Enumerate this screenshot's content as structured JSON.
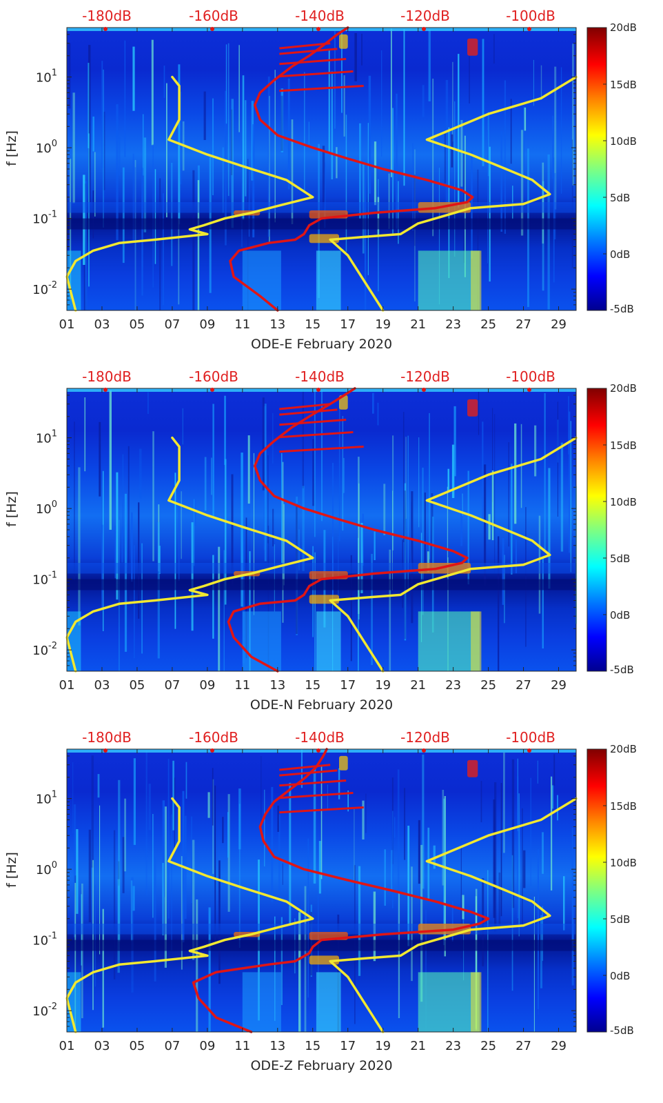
{
  "chart_data": [
    {
      "type": "heatmap",
      "title": "",
      "xlabel": "ODE-E February 2020",
      "ylabel": "f [Hz]",
      "x_ticks": [
        "01",
        "03",
        "05",
        "07",
        "09",
        "11",
        "13",
        "15",
        "17",
        "19",
        "21",
        "23",
        "25",
        "27",
        "29"
      ],
      "xlim": [
        1,
        30
      ],
      "ylim": [
        0.005,
        50
      ],
      "y_scale": "log",
      "y_ticks": [
        {
          "value": 0.01,
          "base": "10",
          "exp": "-2"
        },
        {
          "value": 0.1,
          "base": "10",
          "exp": "-1"
        },
        {
          "value": 1,
          "base": "10",
          "exp": "0"
        },
        {
          "value": 10,
          "base": "10",
          "exp": "1"
        }
      ],
      "top_labels": [
        "-180dB",
        "-160dB",
        "-140dB",
        "-120dB",
        "-100dB"
      ],
      "colorbar": {
        "ticks": [
          "20dB",
          "15dB",
          "10dB",
          "5dB",
          "0dB",
          "-5dB"
        ],
        "range": [
          -5,
          20
        ]
      },
      "series": [
        {
          "color": "#f2e830",
          "points": [
            [
              7.0,
              10
            ],
            [
              7.4,
              7.5
            ],
            [
              7.4,
              2.5
            ],
            [
              6.8,
              1.3
            ],
            [
              9,
              0.8
            ],
            [
              11,
              0.55
            ],
            [
              13.5,
              0.35
            ],
            [
              15,
              0.2
            ],
            [
              13,
              0.15
            ],
            [
              11.5,
              0.12
            ],
            [
              10,
              0.1
            ],
            [
              8.8,
              0.08
            ],
            [
              8,
              0.07
            ],
            [
              9,
              0.06
            ],
            [
              6,
              0.05
            ],
            [
              4,
              0.045
            ],
            [
              2.5,
              0.035
            ],
            [
              1.5,
              0.025
            ],
            [
              1.0,
              0.015
            ],
            [
              1.5,
              0.005
            ]
          ]
        },
        {
          "color": "#f2e830",
          "points": [
            [
              30,
              10
            ],
            [
              28,
              5
            ],
            [
              25,
              3
            ],
            [
              21.5,
              1.3
            ],
            [
              24,
              0.8
            ],
            [
              26,
              0.5
            ],
            [
              27.5,
              0.35
            ],
            [
              28.5,
              0.22
            ],
            [
              27,
              0.16
            ],
            [
              24,
              0.14
            ],
            [
              22,
              0.1
            ],
            [
              21,
              0.085
            ],
            [
              20,
              0.06
            ],
            [
              18,
              0.055
            ],
            [
              16,
              0.05
            ],
            [
              17,
              0.03
            ],
            [
              19,
              0.005
            ]
          ]
        },
        {
          "color": "#e01515",
          "points": [
            [
              13,
              0.005
            ],
            [
              12,
              0.008
            ],
            [
              10.5,
              0.015
            ],
            [
              10.3,
              0.025
            ],
            [
              10.8,
              0.035
            ],
            [
              12.5,
              0.045
            ],
            [
              14,
              0.05
            ],
            [
              14.5,
              0.06
            ],
            [
              14.8,
              0.08
            ],
            [
              15.5,
              0.1
            ],
            [
              18.5,
              0.12
            ],
            [
              22,
              0.14
            ],
            [
              23.8,
              0.17
            ],
            [
              24.1,
              0.2
            ],
            [
              23.5,
              0.25
            ],
            [
              21.5,
              0.35
            ],
            [
              19,
              0.5
            ],
            [
              17,
              0.7
            ],
            [
              15,
              1.0
            ],
            [
              13,
              1.5
            ],
            [
              12,
              2.5
            ],
            [
              11.7,
              4
            ],
            [
              12,
              6
            ],
            [
              12.8,
              9
            ],
            [
              13.8,
              14
            ],
            [
              14.8,
              20
            ],
            [
              15.6,
              28
            ],
            [
              16.4,
              40
            ],
            [
              17,
              50
            ]
          ]
        }
      ]
    },
    {
      "type": "heatmap",
      "title": "",
      "xlabel": "ODE-N February 2020",
      "ylabel": "f [Hz]",
      "x_ticks": [
        "01",
        "03",
        "05",
        "07",
        "09",
        "11",
        "13",
        "15",
        "17",
        "19",
        "21",
        "23",
        "25",
        "27",
        "29"
      ],
      "xlim": [
        1,
        30
      ],
      "ylim": [
        0.005,
        50
      ],
      "y_scale": "log",
      "y_ticks": [
        {
          "value": 0.01,
          "base": "10",
          "exp": "-2"
        },
        {
          "value": 0.1,
          "base": "10",
          "exp": "-1"
        },
        {
          "value": 1,
          "base": "10",
          "exp": "0"
        },
        {
          "value": 10,
          "base": "10",
          "exp": "1"
        }
      ],
      "top_labels": [
        "-180dB",
        "-160dB",
        "-140dB",
        "-120dB",
        "-100dB"
      ],
      "colorbar": {
        "ticks": [
          "20dB",
          "15dB",
          "10dB",
          "5dB",
          "0dB",
          "-5dB"
        ],
        "range": [
          -5,
          20
        ]
      },
      "series": [
        {
          "color": "#f2e830",
          "points": [
            [
              7.0,
              10
            ],
            [
              7.4,
              7.5
            ],
            [
              7.4,
              2.5
            ],
            [
              6.8,
              1.3
            ],
            [
              9,
              0.8
            ],
            [
              11,
              0.55
            ],
            [
              13.5,
              0.35
            ],
            [
              15,
              0.2
            ],
            [
              13,
              0.15
            ],
            [
              11.5,
              0.12
            ],
            [
              10,
              0.1
            ],
            [
              8.8,
              0.08
            ],
            [
              8,
              0.07
            ],
            [
              9,
              0.06
            ],
            [
              6,
              0.05
            ],
            [
              4,
              0.045
            ],
            [
              2.5,
              0.035
            ],
            [
              1.5,
              0.025
            ],
            [
              1.0,
              0.015
            ],
            [
              1.5,
              0.005
            ]
          ]
        },
        {
          "color": "#f2e830",
          "points": [
            [
              30,
              10
            ],
            [
              28,
              5
            ],
            [
              25,
              3
            ],
            [
              21.5,
              1.3
            ],
            [
              24,
              0.8
            ],
            [
              26,
              0.5
            ],
            [
              27.5,
              0.35
            ],
            [
              28.5,
              0.22
            ],
            [
              27,
              0.16
            ],
            [
              24,
              0.14
            ],
            [
              22,
              0.1
            ],
            [
              21,
              0.085
            ],
            [
              20,
              0.06
            ],
            [
              18,
              0.055
            ],
            [
              16,
              0.05
            ],
            [
              17,
              0.03
            ],
            [
              19,
              0.005
            ]
          ]
        },
        {
          "color": "#e01515",
          "points": [
            [
              13,
              0.005
            ],
            [
              11.5,
              0.008
            ],
            [
              10.5,
              0.015
            ],
            [
              10.2,
              0.025
            ],
            [
              10.5,
              0.035
            ],
            [
              12,
              0.045
            ],
            [
              14,
              0.05
            ],
            [
              14.5,
              0.06
            ],
            [
              14.8,
              0.08
            ],
            [
              15.5,
              0.1
            ],
            [
              18.5,
              0.12
            ],
            [
              22,
              0.14
            ],
            [
              23.5,
              0.17
            ],
            [
              23.8,
              0.2
            ],
            [
              23,
              0.25
            ],
            [
              21,
              0.35
            ],
            [
              18.5,
              0.5
            ],
            [
              16.5,
              0.7
            ],
            [
              14.5,
              1.0
            ],
            [
              12.8,
              1.5
            ],
            [
              12,
              2.5
            ],
            [
              11.7,
              4
            ],
            [
              12,
              6
            ],
            [
              12.8,
              9
            ],
            [
              13.8,
              14
            ],
            [
              14.8,
              20
            ],
            [
              15.8,
              28
            ],
            [
              16.8,
              40
            ],
            [
              17.4,
              50
            ]
          ]
        }
      ]
    },
    {
      "type": "heatmap",
      "title": "",
      "xlabel": "ODE-Z February 2020",
      "ylabel": "f [Hz]",
      "x_ticks": [
        "01",
        "03",
        "05",
        "07",
        "09",
        "11",
        "13",
        "15",
        "17",
        "19",
        "21",
        "23",
        "25",
        "27",
        "29"
      ],
      "xlim": [
        1,
        30
      ],
      "ylim": [
        0.005,
        50
      ],
      "y_scale": "log",
      "y_ticks": [
        {
          "value": 0.01,
          "base": "10",
          "exp": "-2"
        },
        {
          "value": 0.1,
          "base": "10",
          "exp": "-1"
        },
        {
          "value": 1,
          "base": "10",
          "exp": "0"
        },
        {
          "value": 10,
          "base": "10",
          "exp": "1"
        }
      ],
      "top_labels": [
        "-180dB",
        "-160dB",
        "-140dB",
        "-120dB",
        "-100dB"
      ],
      "colorbar": {
        "ticks": [
          "20dB",
          "15dB",
          "10dB",
          "5dB",
          "0dB",
          "-5dB"
        ],
        "range": [
          -5,
          20
        ]
      },
      "series": [
        {
          "color": "#f2e830",
          "points": [
            [
              7.0,
              10
            ],
            [
              7.4,
              7.5
            ],
            [
              7.4,
              2.5
            ],
            [
              6.8,
              1.3
            ],
            [
              9,
              0.8
            ],
            [
              11,
              0.55
            ],
            [
              13.5,
              0.35
            ],
            [
              15,
              0.2
            ],
            [
              13,
              0.15
            ],
            [
              11.5,
              0.12
            ],
            [
              10,
              0.1
            ],
            [
              8.8,
              0.08
            ],
            [
              8,
              0.07
            ],
            [
              9,
              0.06
            ],
            [
              6,
              0.05
            ],
            [
              4,
              0.045
            ],
            [
              2.5,
              0.035
            ],
            [
              1.5,
              0.025
            ],
            [
              1.0,
              0.015
            ],
            [
              1.5,
              0.005
            ]
          ]
        },
        {
          "color": "#f2e830",
          "points": [
            [
              30,
              10
            ],
            [
              28,
              5
            ],
            [
              25,
              3
            ],
            [
              21.5,
              1.3
            ],
            [
              24,
              0.8
            ],
            [
              26,
              0.5
            ],
            [
              27.5,
              0.35
            ],
            [
              28.5,
              0.22
            ],
            [
              27,
              0.16
            ],
            [
              24,
              0.14
            ],
            [
              22,
              0.1
            ],
            [
              21,
              0.085
            ],
            [
              20,
              0.06
            ],
            [
              18,
              0.055
            ],
            [
              16,
              0.05
            ],
            [
              17,
              0.03
            ],
            [
              19,
              0.005
            ]
          ]
        },
        {
          "color": "#e01515",
          "points": [
            [
              11.5,
              0.005
            ],
            [
              9.5,
              0.008
            ],
            [
              8.5,
              0.015
            ],
            [
              8.2,
              0.025
            ],
            [
              9.5,
              0.035
            ],
            [
              12.5,
              0.045
            ],
            [
              14,
              0.05
            ],
            [
              14.8,
              0.065
            ],
            [
              15,
              0.08
            ],
            [
              15.5,
              0.1
            ],
            [
              19,
              0.12
            ],
            [
              23,
              0.14
            ],
            [
              24.5,
              0.17
            ],
            [
              25,
              0.2
            ],
            [
              24,
              0.25
            ],
            [
              22,
              0.35
            ],
            [
              19.5,
              0.5
            ],
            [
              17,
              0.7
            ],
            [
              14.5,
              1.0
            ],
            [
              12.8,
              1.5
            ],
            [
              12.2,
              2.5
            ],
            [
              12,
              4
            ],
            [
              12.3,
              6
            ],
            [
              12.8,
              9
            ],
            [
              13.8,
              14
            ],
            [
              14.6,
              20
            ],
            [
              15.2,
              28
            ],
            [
              15.6,
              40
            ],
            [
              15.8,
              50
            ]
          ]
        }
      ]
    }
  ],
  "colors": {
    "colormap": [
      "#00008f",
      "#0000ff",
      "#0080ff",
      "#00ffff",
      "#80ff80",
      "#ffff00",
      "#ff8000",
      "#ff0000",
      "#800000"
    ],
    "yellow_curve": "#f2e830",
    "red_curve": "#e01515",
    "db_label": "#e02020"
  }
}
